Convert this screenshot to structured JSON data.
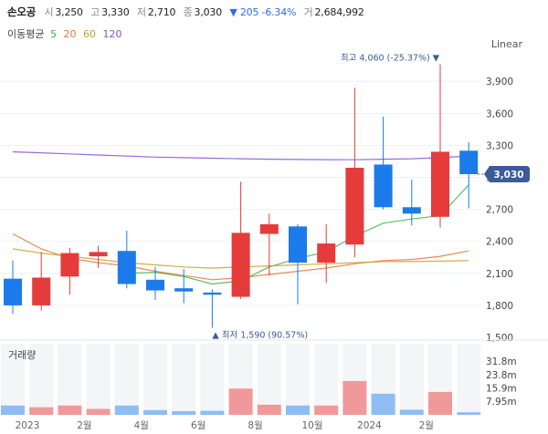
{
  "header": {
    "name": "손오공",
    "open_label": "시",
    "open": "3,250",
    "high_label": "고",
    "high": "3,330",
    "low_label": "저",
    "low": "2,710",
    "close_label": "종",
    "close": "3,030",
    "change": "▼ 205 -6.34%",
    "volume_label": "거",
    "volume": "2,684,992"
  },
  "ma_legend": {
    "title": "이동평균",
    "periods": [
      {
        "label": "5",
        "color": "#3cb44b"
      },
      {
        "label": "20",
        "color": "#e8763a"
      },
      {
        "label": "60",
        "color": "#c9a227"
      },
      {
        "label": "120",
        "color": "#8a4fd6"
      }
    ]
  },
  "scale_mode": "Linear",
  "colors": {
    "up": "#e63b3b",
    "down": "#1b7bea",
    "up_vol": "#f0999b",
    "down_vol": "#8dbdf4",
    "price_tag": "#3d5a99"
  },
  "chart_data": {
    "type": "candlestick",
    "x_tick_labels": [
      "2023",
      "2월",
      "4월",
      "6월",
      "8월",
      "10월",
      "2024",
      "2월"
    ],
    "y_ticks": [
      1500,
      1800,
      2100,
      2400,
      2700,
      3000,
      3300,
      3600,
      3900
    ],
    "ylim": [
      1500,
      4150
    ],
    "candles": [
      {
        "open": 2050,
        "high": 2220,
        "low": 1720,
        "close": 1800
      },
      {
        "open": 1800,
        "high": 2300,
        "low": 1750,
        "close": 2060
      },
      {
        "open": 2070,
        "high": 2340,
        "low": 1900,
        "close": 2290
      },
      {
        "open": 2260,
        "high": 2360,
        "low": 2150,
        "close": 2300
      },
      {
        "open": 2310,
        "high": 2500,
        "low": 1960,
        "close": 2000
      },
      {
        "open": 2040,
        "high": 2160,
        "low": 1850,
        "close": 1940
      },
      {
        "open": 1960,
        "high": 2140,
        "low": 1820,
        "close": 1930
      },
      {
        "open": 1920,
        "high": 1950,
        "low": 1590,
        "close": 1900
      },
      {
        "open": 1880,
        "high": 2960,
        "low": 1860,
        "close": 2480
      },
      {
        "open": 2470,
        "high": 2660,
        "low": 2080,
        "close": 2560
      },
      {
        "open": 2540,
        "high": 2560,
        "low": 1810,
        "close": 2200
      },
      {
        "open": 2200,
        "high": 2560,
        "low": 2010,
        "close": 2380
      },
      {
        "open": 2370,
        "high": 3840,
        "low": 2250,
        "close": 3090
      },
      {
        "open": 3120,
        "high": 3570,
        "low": 2700,
        "close": 2720
      },
      {
        "open": 2720,
        "high": 2980,
        "low": 2550,
        "close": 2660
      },
      {
        "open": 2630,
        "high": 4060,
        "low": 2530,
        "close": 3240
      },
      {
        "open": 3250,
        "high": 3330,
        "low": 2710,
        "close": 3030
      }
    ],
    "ma": [
      {
        "period": "5",
        "color": "#3cb44b",
        "values": [
          null,
          null,
          null,
          null,
          2100,
          2110,
          2070,
          2000,
          2030,
          2160,
          2240,
          2300,
          2450,
          2570,
          2610,
          2640,
          2930
        ]
      },
      {
        "period": "20",
        "color": "#e8763a",
        "values": [
          2470,
          2330,
          2240,
          2200,
          2170,
          2120,
          2080,
          2040,
          2060,
          2090,
          2120,
          2150,
          2190,
          2220,
          2230,
          2260,
          2310
        ]
      },
      {
        "period": "60",
        "color": "#c9a227",
        "values": [
          2330,
          2290,
          2260,
          2230,
          2200,
          2180,
          2160,
          2150,
          2160,
          2170,
          2180,
          2190,
          2200,
          2210,
          2210,
          2215,
          2220
        ]
      },
      {
        "period": "120",
        "color": "#8a4fd6",
        "values": [
          3240,
          3230,
          3220,
          3210,
          3200,
          3190,
          3185,
          3180,
          3175,
          3170,
          3168,
          3166,
          3165,
          3170,
          3175,
          3185,
          3200
        ]
      }
    ],
    "last_price_tag": "3,030",
    "annotations": {
      "high": {
        "text": "최고 4,060 (-25.37%)",
        "candle": 15
      },
      "low": {
        "text": "최저 1,590 (90.57%)",
        "candle": 7
      }
    },
    "volume": {
      "title": "거래량",
      "ticks": [
        "31.8m",
        "23.8m",
        "15.9m",
        "7.95m"
      ],
      "tick_values": [
        31.8,
        23.8,
        15.9,
        7.95
      ],
      "ymax": 42,
      "values": [
        5.5,
        4.5,
        5.5,
        3.5,
        5.5,
        2.8,
        2.2,
        2.4,
        15.5,
        6.0,
        5.5,
        5.5,
        20.0,
        12.5,
        3.0,
        13.5,
        1.5
      ]
    }
  }
}
